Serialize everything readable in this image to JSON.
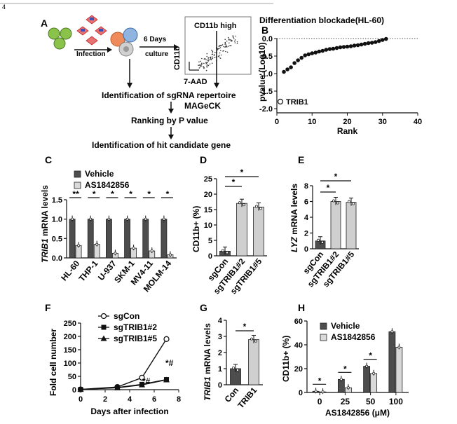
{
  "page_number": "4",
  "panels": {
    "A": {
      "label": "A",
      "infection": "Infection",
      "culture_line1": "6 Days",
      "culture_line2": "culture",
      "gate": "CD11b high",
      "flow_y": "CD11b",
      "flow_x": "7-AAD",
      "step1": "Identification of sgRNA repertoire",
      "step2": "MAGeCK",
      "step3": "Ranking by P value",
      "step4": "Identification of hit candidate gene"
    },
    "B": {
      "label": "B"
    },
    "C": {
      "label": "C"
    },
    "D": {
      "label": "D"
    },
    "E": {
      "label": "E"
    },
    "F": {
      "label": "F"
    },
    "G": {
      "label": "G"
    },
    "H": {
      "label": "H"
    }
  },
  "chart_data": [
    {
      "panel": "B",
      "type": "scatter",
      "title": "Differentiation blockade(HL-60)",
      "xlabel": "Rank",
      "ylabel": "pvalue (Log10)",
      "xlim": [
        0,
        40
      ],
      "ylim": [
        -2.0,
        0.0
      ],
      "xticks": [
        "0",
        "10",
        "20",
        "30",
        "40"
      ],
      "yticks": [
        "0.0",
        "-0.5",
        "-1.0",
        "-1.5",
        "-2.0"
      ],
      "reference_line": 0.0,
      "x": [
        1,
        2,
        3,
        4,
        5,
        6,
        7,
        8,
        9,
        10,
        11,
        12,
        13,
        14,
        15,
        16,
        17,
        18,
        19,
        20,
        21,
        22,
        23,
        24,
        25,
        26,
        27,
        28,
        29,
        30,
        31
      ],
      "y": [
        -1.8,
        -0.95,
        -0.88,
        -0.82,
        -0.7,
        -0.62,
        -0.55,
        -0.48,
        -0.45,
        -0.42,
        -0.4,
        -0.37,
        -0.35,
        -0.32,
        -0.3,
        -0.29,
        -0.27,
        -0.25,
        -0.24,
        -0.23,
        -0.22,
        -0.2,
        -0.19,
        -0.17,
        -0.15,
        -0.13,
        -0.12,
        -0.1,
        -0.07,
        -0.04,
        -0.01
      ],
      "highlight": {
        "index": 0,
        "label": "TRIB1"
      }
    },
    {
      "panel": "C",
      "type": "bar",
      "ylabel_gene": "TRIB1",
      "ylabel_rest": " mRNA levels",
      "ylim": [
        0,
        1.5
      ],
      "yticks": [
        "0.0",
        "0.5",
        "1.0",
        "1.5"
      ],
      "categories": [
        "HL-60",
        "THP-1",
        "U-937",
        "SKM-1",
        "MV4-11",
        "MOLM-14"
      ],
      "series": [
        {
          "name": "Vehicle",
          "values": [
            1.0,
            1.0,
            1.0,
            1.0,
            1.0,
            1.0
          ],
          "color": "#4d4d4d"
        },
        {
          "name": "AS1842856",
          "values": [
            0.32,
            0.35,
            0.12,
            0.25,
            0.18,
            0.08
          ],
          "color": "#d9d9d9"
        }
      ],
      "significance": [
        "**",
        "*",
        "*",
        "*",
        "*",
        "*"
      ]
    },
    {
      "panel": "D",
      "type": "bar",
      "ylabel": "CD11b+ (%)",
      "ylim": [
        0,
        25
      ],
      "yticks": [
        "0",
        "5",
        "10",
        "15",
        "20",
        "25"
      ],
      "categories": [
        "sgCon",
        "sgTRIB1#2",
        "sgTRIB1#5"
      ],
      "values": [
        1.5,
        17.0,
        15.8
      ],
      "colors": [
        "#4d4d4d",
        "#cfcfcf",
        "#cfcfcf"
      ],
      "significance": [
        "*",
        "*"
      ]
    },
    {
      "panel": "E",
      "type": "bar",
      "ylabel_gene": "LYZ",
      "ylabel_rest": " mRNA levels",
      "ylim": [
        0,
        8
      ],
      "yticks": [
        "0",
        "2",
        "4",
        "6",
        "8"
      ],
      "categories": [
        "sgCon",
        "sgTRIB1#2",
        "sgTRIB1#5"
      ],
      "values": [
        1.0,
        6.0,
        5.9
      ],
      "colors": [
        "#4d4d4d",
        "#cfcfcf",
        "#cfcfcf"
      ],
      "significance": [
        "*",
        "*"
      ]
    },
    {
      "panel": "F",
      "type": "line",
      "xlabel": "Days after infection",
      "ylabel": "Fold cell number",
      "xlim": [
        0,
        8
      ],
      "ylim": [
        0,
        250
      ],
      "xticks": [
        "0",
        "2",
        "4",
        "6",
        "8"
      ],
      "yticks": [
        "0",
        "50",
        "100",
        "150",
        "200",
        "250"
      ],
      "series": [
        {
          "name": "sgCon",
          "x": [
            0,
            3,
            5,
            7
          ],
          "y": [
            1,
            10,
            45,
            190
          ],
          "marker": "circle-open"
        },
        {
          "name": "sgTRIB1#2",
          "x": [
            0,
            3,
            5,
            7
          ],
          "y": [
            1,
            8,
            20,
            38
          ],
          "marker": "square"
        },
        {
          "name": "sgTRIB1#5",
          "x": [
            0,
            3,
            5,
            7
          ],
          "y": [
            1,
            7,
            18,
            37
          ],
          "marker": "triangle"
        }
      ],
      "annotations": [
        "*#",
        "*#"
      ]
    },
    {
      "panel": "G",
      "type": "bar",
      "ylabel_gene": "TRIB1",
      "ylabel_rest": " mRNA levels",
      "ylim": [
        0,
        4
      ],
      "yticks": [
        "0",
        "1",
        "2",
        "3",
        "4"
      ],
      "categories": [
        "Con",
        "TRIB1"
      ],
      "values": [
        1.0,
        2.8
      ],
      "colors": [
        "#4d4d4d",
        "#cfcfcf"
      ],
      "significance": [
        "*"
      ]
    },
    {
      "panel": "H",
      "type": "bar",
      "xlabel": "AS1842856 (μM)",
      "ylabel": "CD11b+ (%)",
      "ylim": [
        0,
        60
      ],
      "yticks": [
        "0",
        "20",
        "40",
        "60"
      ],
      "categories": [
        "0",
        "25",
        "50",
        "100"
      ],
      "series": [
        {
          "name": "Vehicle",
          "values": [
            1.0,
            11.0,
            22.0,
            51.0
          ],
          "color": "#4d4d4d"
        },
        {
          "name": "AS1842856",
          "values": [
            0.5,
            4.0,
            16.0,
            38.0
          ],
          "color": "#d9d9d9"
        }
      ],
      "significance": [
        "*",
        "*",
        "*"
      ]
    }
  ]
}
